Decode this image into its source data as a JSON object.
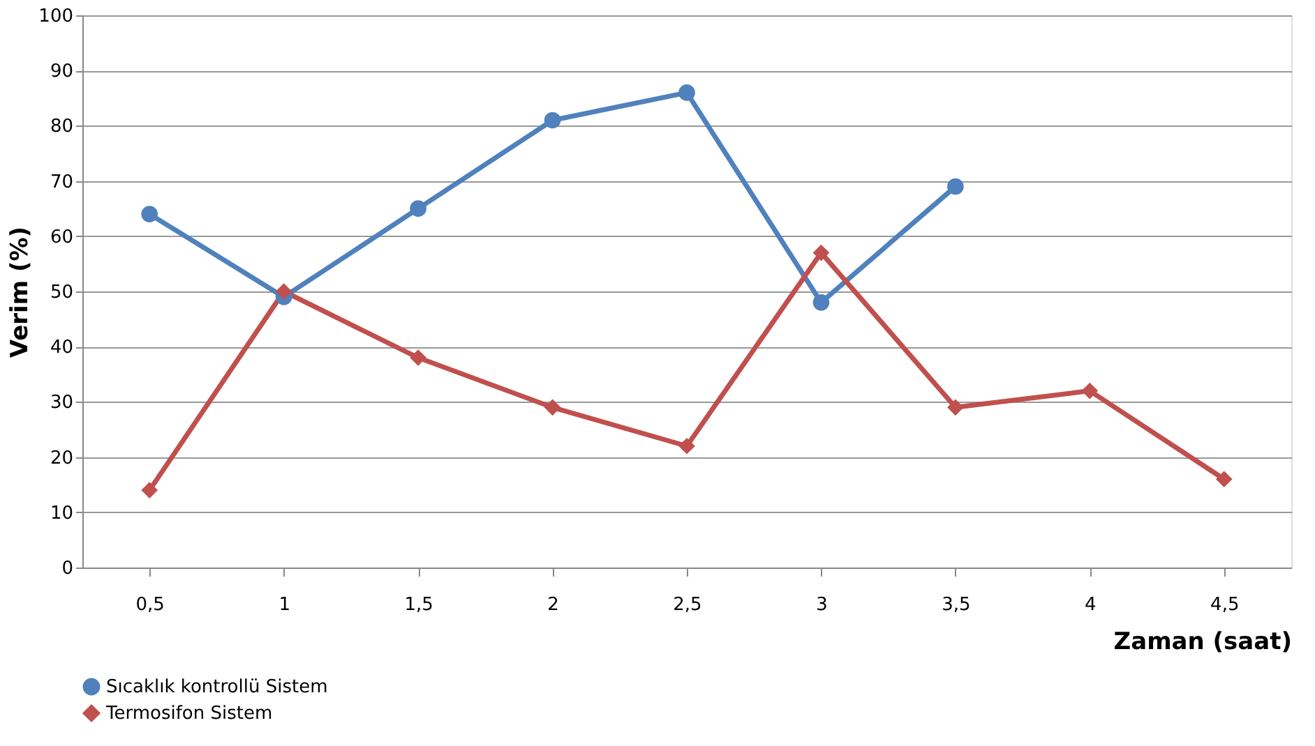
{
  "chart_data": {
    "type": "line",
    "xlabel": "Zaman (saat)",
    "ylabel": "Verim (%)",
    "categories": [
      "0,5",
      "1",
      "1,5",
      "2",
      "2,5",
      "3",
      "3,5",
      "4",
      "4,5"
    ],
    "series": [
      {
        "name": "Sıcaklık kontrollü Sistem",
        "color": "#4f81bd",
        "marker": "circle",
        "values": [
          64,
          49,
          65,
          81,
          86,
          48,
          69,
          null,
          null
        ]
      },
      {
        "name": "Termosifon Sistem",
        "color": "#c0504d",
        "marker": "diamond",
        "values": [
          14,
          50,
          38,
          29,
          22,
          57,
          29,
          32,
          16
        ]
      }
    ],
    "ylim": [
      0,
      100
    ],
    "yticks": [
      0,
      10,
      20,
      30,
      40,
      50,
      60,
      70,
      80,
      90,
      100
    ],
    "grid": "y",
    "legend": "bottom",
    "line_style": "solid"
  }
}
